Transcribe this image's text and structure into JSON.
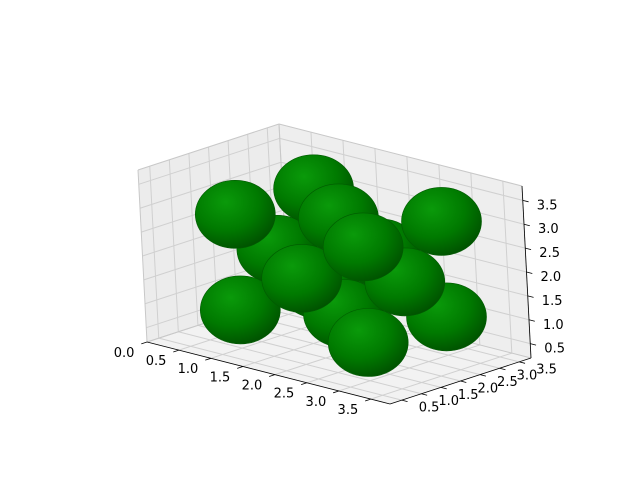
{
  "chart_data": {
    "type": "scatter3d",
    "title": "",
    "xlabel": "",
    "ylabel": "",
    "zlabel": "",
    "xlim": [
      0.0,
      3.8
    ],
    "ylim": [
      0.2,
      3.8
    ],
    "zlim": [
      0.2,
      3.8
    ],
    "x_ticks": [
      "0.0",
      "0.5",
      "1.0",
      "1.5",
      "2.0",
      "2.5",
      "3.0",
      "3.5"
    ],
    "y_ticks": [
      "0.5",
      "1.0",
      "1.5",
      "2.0",
      "2.5",
      "3.0",
      "3.5"
    ],
    "z_ticks": [
      "0.5",
      "1.0",
      "1.5",
      "2.0",
      "2.5",
      "3.0",
      "3.5"
    ],
    "marker": "sphere",
    "sphere_radius": 1.0,
    "color": "#008000",
    "pane_color": "#f2f2f2",
    "grid": true,
    "points": [
      {
        "x": 1.0,
        "y": 1.0,
        "z": 1.0
      },
      {
        "x": 3.0,
        "y": 1.0,
        "z": 1.0
      },
      {
        "x": 1.0,
        "y": 3.0,
        "z": 1.0
      },
      {
        "x": 3.0,
        "y": 3.0,
        "z": 1.0
      },
      {
        "x": 1.0,
        "y": 1.0,
        "z": 3.0
      },
      {
        "x": 3.0,
        "y": 1.0,
        "z": 3.0
      },
      {
        "x": 1.0,
        "y": 3.0,
        "z": 3.0
      },
      {
        "x": 3.0,
        "y": 3.0,
        "z": 3.0
      },
      {
        "x": 2.0,
        "y": 2.0,
        "z": 1.0
      },
      {
        "x": 2.0,
        "y": 2.0,
        "z": 3.0
      },
      {
        "x": 2.0,
        "y": 1.0,
        "z": 2.0
      },
      {
        "x": 2.0,
        "y": 3.0,
        "z": 2.0
      },
      {
        "x": 1.0,
        "y": 2.0,
        "z": 2.0
      },
      {
        "x": 3.0,
        "y": 2.0,
        "z": 2.0
      }
    ]
  }
}
